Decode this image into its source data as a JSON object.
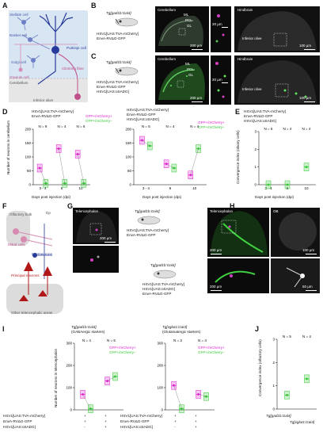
{
  "panels": {
    "A": "A",
    "B": "B",
    "C": "C",
    "D": "D",
    "E": "E",
    "F": "F",
    "G": "G",
    "H": "H",
    "I": "I",
    "J": "J"
  },
  "panelA": {
    "stellate": "Stellate cell",
    "basket": "Basket cell",
    "golgi": "Golgi cell",
    "purkinje": "Purkinje cell",
    "granule": "Granule cell",
    "climbing": "Climbing fiber",
    "cerebellum": "Cerebellum",
    "inferior_olive": "Inferior olive"
  },
  "panelB": {
    "line": "Tg[gad1b:Gal4]",
    "virus1": "HSV1[UAS:TVA-mCherry]",
    "virus2": "EnvA-RVΔG-GFP",
    "cerebellum": "Cerebellum",
    "hindbrain": "Hindbrain",
    "io": "Inferior olive",
    "ml": "ML",
    "pcl": "PCL",
    "gl": "GL",
    "s200": "200 µm",
    "s20": "20 µm",
    "s100": "100 µm"
  },
  "panelC": {
    "line": "Tg[gad1b:Gal4]",
    "virus1": "HSV1[UAS:TVA-mCherry]",
    "virus2": "EnvA-RVΔG-GFP",
    "virus3": "HSV1[UAS:oSADG]",
    "cerebellum": "Cerebellum",
    "hindbrain": "Hindbrain",
    "io": "Inferior olive",
    "ml": "ML",
    "pcl": "PCL",
    "gl": "GL",
    "s200": "200 µm",
    "s20": "20 µm",
    "s100": "100 µm"
  },
  "panelD": {
    "left_title1": "HSV1[UAS:TVA-mCherry]",
    "left_title2": "EnvA-RVΔG-GFP",
    "right_title1": "HSV1[UAS:TVA-mCherry]",
    "right_title2": "EnvA-RVΔG-GFP",
    "right_title3": "HSV1[UAS:oSADG]",
    "ylabel": "Number of neurons in cerebellum",
    "xlabel": "Days post injection (dpi)",
    "legend_pos": "GFP+/mCherry+",
    "legend_neg": "GFP+/mCherry−",
    "yticks": [
      "0",
      "50",
      "100",
      "150",
      "200"
    ],
    "left_n": [
      "N = 9",
      "N = 4",
      "N = 6"
    ],
    "right_n": [
      "N = 5",
      "N = 4",
      "N = 4"
    ],
    "categories": [
      "3 - 4",
      "6",
      "10"
    ]
  },
  "panelE": {
    "title1": "HSV1[UAS:TVA-mCherry]",
    "title2": "EnvA-RVΔG-GFP",
    "title3": "HSV1[UAS:oSADG]",
    "ylabel": "Convergence index (olivary cells)",
    "xlabel": "Days post injection (dpi)",
    "yticks": [
      "0",
      "1",
      "2",
      "3"
    ],
    "n": [
      "N = 5",
      "N = 4",
      "N = 4"
    ],
    "categories": [
      "3 - 4",
      "6",
      "10"
    ]
  },
  "panelF": {
    "ob": "Olfactory bulb",
    "dp": "Dp",
    "mitral": "Mitral cells",
    "inter": "Interneurons",
    "principal": "Principal neurons",
    "other": "Other telencephalic areas"
  },
  "panelG": {
    "tel": "Telencephalon",
    "line": "Tg[gad1b:Gal4]",
    "v1": "HSV1[UAS:TVA-mCherry]",
    "v2": "EnvA-RVΔG-GFP",
    "s200": "200 µm"
  },
  "panelGH_lower": {
    "line": "Tg[gad1b:Gal4]",
    "v1": "HSV1[UAS:TVA-mCherry]",
    "v2": "HSV1[UAS:oSADG]",
    "v3": "EnvA-RVΔG-GFP"
  },
  "panelH": {
    "tel": "Telencephalon",
    "ob": "OB",
    "s200": "200 µm",
    "s100": "100 µm",
    "s50": "50 µm"
  },
  "panelI": {
    "left_title": "Tg[gad1b:Gal4]",
    "left_sub": "(GABAergic starters)",
    "right_title": "Tg[vglut1:Gal4]",
    "right_sub": "(Glutamatergic starters)",
    "ylabel": "Number of neurons in telencephalon",
    "yticks": [
      "0",
      "100",
      "200",
      "300"
    ],
    "left_n": [
      "N = 4",
      "N = 5"
    ],
    "right_n": [
      "N = 3",
      "N = 4"
    ],
    "legend_pos": "GFP+/mCherry+",
    "legend_neg": "GFP+/mCherry−",
    "row1": "HSV1[UAS:TVA-mCherry]",
    "row2": "EnvA-RVΔG-GFP",
    "row3": "HSV1[UAS:oSADG]",
    "left_signs": [
      [
        "+",
        "+"
      ],
      [
        "+",
        "+"
      ],
      [
        "-",
        "+"
      ]
    ],
    "right_signs": [
      [
        "+",
        "+"
      ],
      [
        "+",
        "+"
      ],
      [
        "-",
        "+"
      ]
    ]
  },
  "panelJ": {
    "ylabel": "Convergence index (olfactory cells)",
    "yticks": [
      "0",
      "1",
      "2",
      "3"
    ],
    "n": [
      "N = 5",
      "N = 4"
    ],
    "categories": [
      "Tg[gad1b:Gal4]",
      "Tg[vglut1:Gal4]"
    ]
  },
  "colors": {
    "magenta": "#e020d0",
    "green": "#35c835",
    "blue": "#3a4fb0",
    "pink": "#d080a8",
    "red": "#b01818"
  },
  "chart_data": [
    {
      "type": "scatter",
      "panel": "D-left",
      "title": "HSV1[UAS:TVA-mCherry] EnvA-RVΔG-GFP",
      "ylabel": "Number of neurons in cerebellum",
      "xlabel": "Days post injection (dpi)",
      "categories": [
        "3 - 4",
        "6",
        "10"
      ],
      "ylim": [
        0,
        200
      ],
      "series": [
        {
          "name": "GFP+/mCherry+",
          "values": [
            60,
            130,
            110
          ]
        },
        {
          "name": "GFP+/mCherry−",
          "values": [
            5,
            5,
            5
          ]
        }
      ]
    },
    {
      "type": "scatter",
      "panel": "D-right",
      "title": "HSV1[UAS:TVA-mCherry] EnvA-RVΔG-GFP HSV1[UAS:oSADG]",
      "ylabel": "Number of neurons in cerebellum",
      "xlabel": "Days post injection (dpi)",
      "categories": [
        "3 - 4",
        "6",
        "10"
      ],
      "ylim": [
        0,
        200
      ],
      "series": [
        {
          "name": "GFP+/mCherry+",
          "values": [
            160,
            75,
            35
          ]
        },
        {
          "name": "GFP+/mCherry−",
          "values": [
            140,
            60,
            130
          ]
        }
      ]
    },
    {
      "type": "scatter",
      "panel": "E",
      "title": "HSV1[UAS:TVA-mCherry] EnvA-RVΔG-GFP HSV1[UAS:oSADG]",
      "ylabel": "Convergence index (olivary cells)",
      "xlabel": "Days post injection (dpi)",
      "categories": [
        "3 - 4",
        "6",
        "10"
      ],
      "ylim": [
        0,
        3
      ],
      "series": [
        {
          "values": [
            0,
            0,
            1.0
          ]
        }
      ]
    },
    {
      "type": "scatter",
      "panel": "I-left",
      "title": "Tg[gad1b:Gal4] (GABAergic starters)",
      "ylabel": "Number of neurons in telencephalon",
      "ylim": [
        0,
        300
      ],
      "series": [
        {
          "name": "GFP+/mCherry+",
          "values": [
            70,
            130
          ]
        },
        {
          "name": "GFP+/mCherry−",
          "values": [
            5,
            150
          ]
        }
      ]
    },
    {
      "type": "scatter",
      "panel": "I-right",
      "title": "Tg[vglut1:Gal4] (Glutamatergic starters)",
      "ylabel": "Number of neurons in telencephalon",
      "ylim": [
        0,
        300
      ],
      "series": [
        {
          "name": "GFP+/mCherry+",
          "values": [
            110,
            70
          ]
        },
        {
          "name": "GFP+/mCherry−",
          "values": [
            5,
            60
          ]
        }
      ]
    },
    {
      "type": "scatter",
      "panel": "J",
      "ylabel": "Convergence index (olfactory cells)",
      "categories": [
        "Tg[gad1b:Gal4]",
        "Tg[vglut1:Gal4]"
      ],
      "ylim": [
        0,
        3
      ],
      "series": [
        {
          "values": [
            0.6,
            1.3
          ]
        }
      ]
    }
  ]
}
